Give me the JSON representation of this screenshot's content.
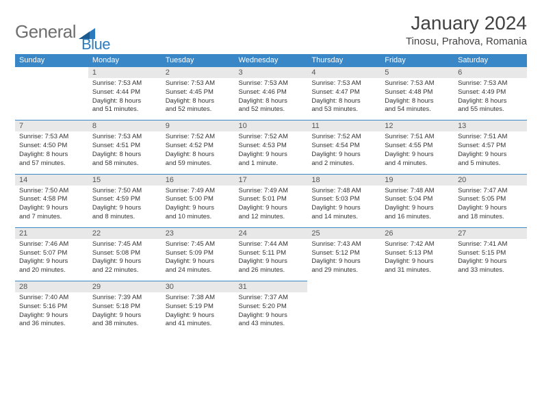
{
  "header": {
    "logo_word1": "General",
    "logo_word2": "Blue",
    "title": "January 2024",
    "location": "Tinosu, Prahova, Romania"
  },
  "styling": {
    "page_bg": "#ffffff",
    "header_bar_color": "#3a87c8",
    "header_text_color": "#ffffff",
    "daynum_bg": "#e8e8e8",
    "daynum_color": "#555555",
    "body_text_color": "#333333",
    "cell_border_color": "#3a87c8",
    "title_color": "#424242",
    "logo_gray": "#6e6e6e",
    "logo_blue": "#2b7bbf",
    "title_fontsize": 28,
    "location_fontsize": 15,
    "weekday_fontsize": 11,
    "daynum_fontsize": 11,
    "body_fontsize": 9.5
  },
  "weekdays": [
    "Sunday",
    "Monday",
    "Tuesday",
    "Wednesday",
    "Thursday",
    "Friday",
    "Saturday"
  ],
  "weeks": [
    [
      null,
      {
        "n": "1",
        "sr": "Sunrise: 7:53 AM",
        "ss": "Sunset: 4:44 PM",
        "d1": "Daylight: 8 hours",
        "d2": "and 51 minutes."
      },
      {
        "n": "2",
        "sr": "Sunrise: 7:53 AM",
        "ss": "Sunset: 4:45 PM",
        "d1": "Daylight: 8 hours",
        "d2": "and 52 minutes."
      },
      {
        "n": "3",
        "sr": "Sunrise: 7:53 AM",
        "ss": "Sunset: 4:46 PM",
        "d1": "Daylight: 8 hours",
        "d2": "and 52 minutes."
      },
      {
        "n": "4",
        "sr": "Sunrise: 7:53 AM",
        "ss": "Sunset: 4:47 PM",
        "d1": "Daylight: 8 hours",
        "d2": "and 53 minutes."
      },
      {
        "n": "5",
        "sr": "Sunrise: 7:53 AM",
        "ss": "Sunset: 4:48 PM",
        "d1": "Daylight: 8 hours",
        "d2": "and 54 minutes."
      },
      {
        "n": "6",
        "sr": "Sunrise: 7:53 AM",
        "ss": "Sunset: 4:49 PM",
        "d1": "Daylight: 8 hours",
        "d2": "and 55 minutes."
      }
    ],
    [
      {
        "n": "7",
        "sr": "Sunrise: 7:53 AM",
        "ss": "Sunset: 4:50 PM",
        "d1": "Daylight: 8 hours",
        "d2": "and 57 minutes."
      },
      {
        "n": "8",
        "sr": "Sunrise: 7:53 AM",
        "ss": "Sunset: 4:51 PM",
        "d1": "Daylight: 8 hours",
        "d2": "and 58 minutes."
      },
      {
        "n": "9",
        "sr": "Sunrise: 7:52 AM",
        "ss": "Sunset: 4:52 PM",
        "d1": "Daylight: 8 hours",
        "d2": "and 59 minutes."
      },
      {
        "n": "10",
        "sr": "Sunrise: 7:52 AM",
        "ss": "Sunset: 4:53 PM",
        "d1": "Daylight: 9 hours",
        "d2": "and 1 minute."
      },
      {
        "n": "11",
        "sr": "Sunrise: 7:52 AM",
        "ss": "Sunset: 4:54 PM",
        "d1": "Daylight: 9 hours",
        "d2": "and 2 minutes."
      },
      {
        "n": "12",
        "sr": "Sunrise: 7:51 AM",
        "ss": "Sunset: 4:55 PM",
        "d1": "Daylight: 9 hours",
        "d2": "and 4 minutes."
      },
      {
        "n": "13",
        "sr": "Sunrise: 7:51 AM",
        "ss": "Sunset: 4:57 PM",
        "d1": "Daylight: 9 hours",
        "d2": "and 5 minutes."
      }
    ],
    [
      {
        "n": "14",
        "sr": "Sunrise: 7:50 AM",
        "ss": "Sunset: 4:58 PM",
        "d1": "Daylight: 9 hours",
        "d2": "and 7 minutes."
      },
      {
        "n": "15",
        "sr": "Sunrise: 7:50 AM",
        "ss": "Sunset: 4:59 PM",
        "d1": "Daylight: 9 hours",
        "d2": "and 8 minutes."
      },
      {
        "n": "16",
        "sr": "Sunrise: 7:49 AM",
        "ss": "Sunset: 5:00 PM",
        "d1": "Daylight: 9 hours",
        "d2": "and 10 minutes."
      },
      {
        "n": "17",
        "sr": "Sunrise: 7:49 AM",
        "ss": "Sunset: 5:01 PM",
        "d1": "Daylight: 9 hours",
        "d2": "and 12 minutes."
      },
      {
        "n": "18",
        "sr": "Sunrise: 7:48 AM",
        "ss": "Sunset: 5:03 PM",
        "d1": "Daylight: 9 hours",
        "d2": "and 14 minutes."
      },
      {
        "n": "19",
        "sr": "Sunrise: 7:48 AM",
        "ss": "Sunset: 5:04 PM",
        "d1": "Daylight: 9 hours",
        "d2": "and 16 minutes."
      },
      {
        "n": "20",
        "sr": "Sunrise: 7:47 AM",
        "ss": "Sunset: 5:05 PM",
        "d1": "Daylight: 9 hours",
        "d2": "and 18 minutes."
      }
    ],
    [
      {
        "n": "21",
        "sr": "Sunrise: 7:46 AM",
        "ss": "Sunset: 5:07 PM",
        "d1": "Daylight: 9 hours",
        "d2": "and 20 minutes."
      },
      {
        "n": "22",
        "sr": "Sunrise: 7:45 AM",
        "ss": "Sunset: 5:08 PM",
        "d1": "Daylight: 9 hours",
        "d2": "and 22 minutes."
      },
      {
        "n": "23",
        "sr": "Sunrise: 7:45 AM",
        "ss": "Sunset: 5:09 PM",
        "d1": "Daylight: 9 hours",
        "d2": "and 24 minutes."
      },
      {
        "n": "24",
        "sr": "Sunrise: 7:44 AM",
        "ss": "Sunset: 5:11 PM",
        "d1": "Daylight: 9 hours",
        "d2": "and 26 minutes."
      },
      {
        "n": "25",
        "sr": "Sunrise: 7:43 AM",
        "ss": "Sunset: 5:12 PM",
        "d1": "Daylight: 9 hours",
        "d2": "and 29 minutes."
      },
      {
        "n": "26",
        "sr": "Sunrise: 7:42 AM",
        "ss": "Sunset: 5:13 PM",
        "d1": "Daylight: 9 hours",
        "d2": "and 31 minutes."
      },
      {
        "n": "27",
        "sr": "Sunrise: 7:41 AM",
        "ss": "Sunset: 5:15 PM",
        "d1": "Daylight: 9 hours",
        "d2": "and 33 minutes."
      }
    ],
    [
      {
        "n": "28",
        "sr": "Sunrise: 7:40 AM",
        "ss": "Sunset: 5:16 PM",
        "d1": "Daylight: 9 hours",
        "d2": "and 36 minutes."
      },
      {
        "n": "29",
        "sr": "Sunrise: 7:39 AM",
        "ss": "Sunset: 5:18 PM",
        "d1": "Daylight: 9 hours",
        "d2": "and 38 minutes."
      },
      {
        "n": "30",
        "sr": "Sunrise: 7:38 AM",
        "ss": "Sunset: 5:19 PM",
        "d1": "Daylight: 9 hours",
        "d2": "and 41 minutes."
      },
      {
        "n": "31",
        "sr": "Sunrise: 7:37 AM",
        "ss": "Sunset: 5:20 PM",
        "d1": "Daylight: 9 hours",
        "d2": "and 43 minutes."
      },
      null,
      null,
      null
    ]
  ]
}
